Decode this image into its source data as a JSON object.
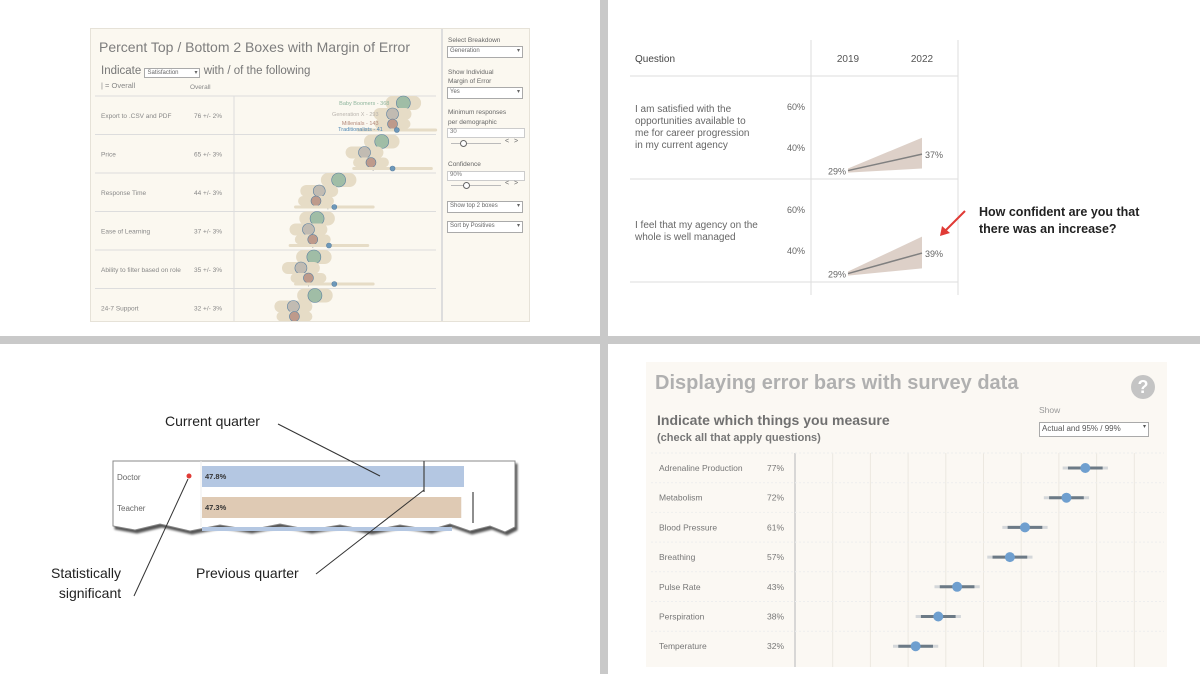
{
  "panel_top_left": {
    "title": "Percent Top / Bottom 2 Boxes with Margin of Error",
    "indicate_prefix": "Indicate",
    "indicate_select": "Satisfaction",
    "indicate_suffix": "with / of the following",
    "legend_overall": "| = Overall",
    "overall_header": "Overall",
    "sidebar": {
      "breakdown_label": "Select Breakdown",
      "breakdown_value": "Generation",
      "moe_label_1": "Show Individual",
      "moe_label_2": "Margin of Error",
      "moe_value": "Yes",
      "min_label_1": "Minimum responses",
      "min_label_2": "per demographic",
      "min_value": "30",
      "confidence_label": "Confidence",
      "confidence_value": "90%",
      "boxes_value": "Show top 2 boxes",
      "sort_value": "Sort by Positives",
      "prev": "<",
      "next": ">"
    }
  },
  "panel_top_right": {
    "header_question": "Question",
    "year_1": "2019",
    "year_2": "2022",
    "annotation": "How confident are you that there was an increase?",
    "annotation_line1": "How confident are you that",
    "annotation_line2": "there was an increase?",
    "arrow_color": "#e03b36"
  },
  "panel_bottom_left": {
    "current_label": "Current quarter",
    "previous_label": "Previous quarter",
    "sig_line1": "Statistically",
    "sig_line2": "significant",
    "rows": [
      {
        "label": "Doctor",
        "value": "47.8%",
        "color": "#b4c7e2"
      },
      {
        "label": "Teacher",
        "value": "47.3%",
        "color": "#dfcab4"
      }
    ],
    "sig_color": "#e03b36"
  },
  "panel_bottom_right": {
    "title": "Displaying error bars with survey data",
    "help": "?",
    "subtitle": "Indicate which things you measure",
    "subtitle2": "(check all that apply questions)",
    "show_label": "Show",
    "show_value": "Actual and 95% / 99%"
  },
  "chart_data": [
    {
      "type": "scatter",
      "title": "Percent Top / Bottom 2 Boxes with Margin of Error",
      "categories": [
        "Export to .CSV and PDF",
        "Price",
        "Response Time",
        "Ease of Learning",
        "Ability to filter based on role",
        "24-7 Support"
      ],
      "overall": [
        "76 +/- 2%",
        "65 +/- 3%",
        "44 +/- 3%",
        "37 +/- 3%",
        "35 +/- 3%",
        "32 +/- 3%"
      ],
      "overall_values": [
        76,
        65,
        44,
        37,
        35,
        32
      ],
      "series": [
        {
          "name": "Baby Boomers - 368",
          "color": "#8fb59d",
          "values": [
            79,
            69,
            49,
            39,
            37.5,
            38
          ],
          "moe": 5
        },
        {
          "name": "Generation X - 293",
          "color": "#b8b3ad",
          "values": [
            74,
            61,
            40,
            35,
            31.5,
            28
          ],
          "moe": 6
        },
        {
          "name": "Millenials - 143",
          "color": "#b48a7c",
          "values": [
            74,
            64,
            38.5,
            37,
            35,
            28.5
          ],
          "moe": 6
        },
        {
          "name": "Traditionalists - 41",
          "color": "#4f87b5",
          "values": [
            76,
            74,
            47,
            44.5,
            47,
            null
          ],
          "moe": 18
        }
      ],
      "band_color": "#e6dcc6"
    },
    {
      "type": "line",
      "categories": [
        "2019",
        "2022"
      ],
      "y_ticks": [
        "40%",
        "60%"
      ],
      "series": [
        {
          "question": "I am satisfied with the opportunities available to me for career progression in my current agency",
          "values": [
            29,
            37
          ],
          "labels": [
            "29%",
            "37%"
          ],
          "lower": [
            28,
            30
          ],
          "upper": [
            30,
            45
          ]
        },
        {
          "question": "I feel that my agency on the whole is well managed",
          "values": [
            29,
            39
          ],
          "labels": [
            "29%",
            "39%"
          ],
          "lower": [
            28,
            31.5
          ],
          "upper": [
            30,
            47
          ]
        }
      ],
      "band_color": "#ddd0c8",
      "line_color": "#808080"
    },
    {
      "type": "bar",
      "categories": [
        "Doctor",
        "Teacher"
      ],
      "values": [
        47.8,
        47.3
      ],
      "labels": [
        "47.8%",
        "47.3%"
      ],
      "previous": [
        46,
        49
      ]
    },
    {
      "type": "scatter",
      "title": "Displaying error bars with survey data",
      "categories": [
        "Adrenaline Production",
        "Metabolism",
        "Blood Pressure",
        "Breathing",
        "Pulse Rate",
        "Perspiration",
        "Temperature"
      ],
      "values": [
        77,
        72,
        61,
        57,
        43,
        38,
        32
      ],
      "labels": [
        "77%",
        "72%",
        "61%",
        "57%",
        "43%",
        "38%",
        "32%"
      ],
      "ci95": 4.6,
      "ci99": 6,
      "xlim": [
        0,
        100
      ],
      "grid": true,
      "dot_color": "#6f9fcf",
      "bar_color": "#6c7a86"
    }
  ]
}
